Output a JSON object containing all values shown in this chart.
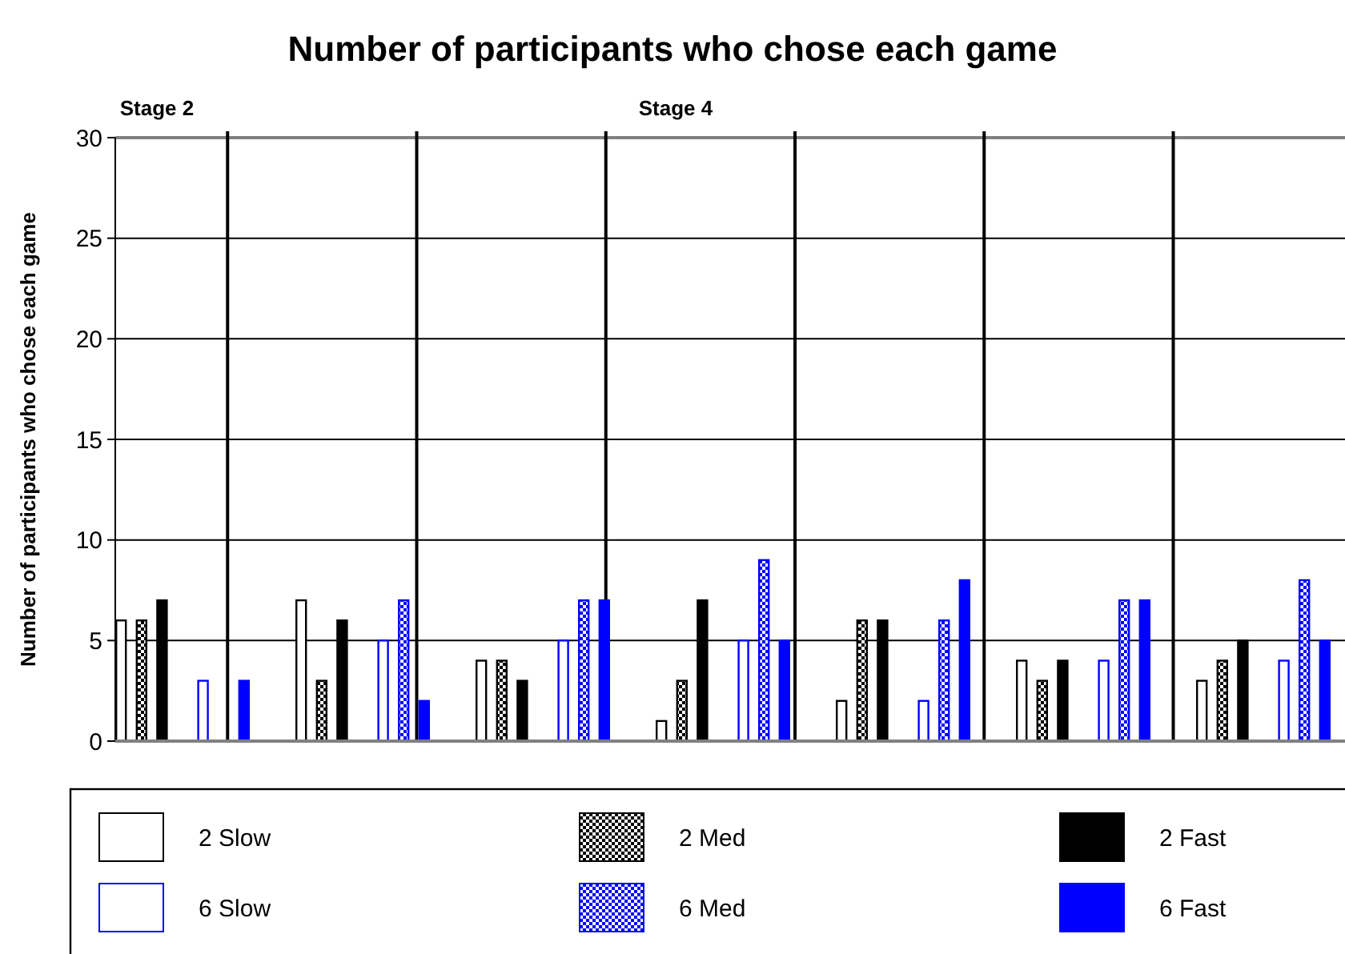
{
  "chart_data": {
    "type": "bar",
    "title": "Number of participants who chose each game",
    "ylabel": "Number of participants who chose each game",
    "categories": [
      null,
      null,
      null,
      null,
      null,
      null,
      null
    ],
    "tick_labels": "y",
    "ylim": [
      0,
      30
    ],
    "yticks": [
      0,
      5,
      10,
      15,
      20,
      25,
      30
    ],
    "grid": "y",
    "legend": "bottom",
    "annotations": [
      "Stage 2",
      "Stage 4"
    ],
    "series": [
      {
        "name": "2 Slow",
        "color": "#000000",
        "values": [
          6,
          7,
          4,
          1,
          2,
          4,
          3
        ]
      },
      {
        "name": "2 Med",
        "color": "#000000",
        "values": [
          6,
          3,
          4,
          3,
          6,
          3,
          4
        ]
      },
      {
        "name": "2 Fast",
        "color": "#000000",
        "values": [
          7,
          6,
          3,
          7,
          6,
          4,
          5
        ]
      },
      {
        "name": "6 Slow",
        "color": "#0000ff",
        "values": [
          3,
          5,
          5,
          5,
          2,
          4,
          4
        ]
      },
      {
        "name": "6 Med",
        "color": "#0000ff",
        "values": [
          null,
          7,
          7,
          9,
          6,
          7,
          8
        ]
      },
      {
        "name": "6 Fast",
        "color": "#0000ff",
        "values": [
          3,
          2,
          7,
          5,
          8,
          7,
          5
        ]
      }
    ]
  }
}
